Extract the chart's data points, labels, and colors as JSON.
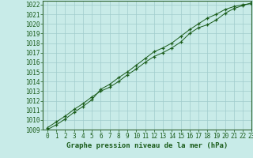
{
  "xlabel": "Graphe pression niveau de la mer (hPa)",
  "xlim": [
    -0.5,
    23
  ],
  "ylim": [
    1009,
    1022.4
  ],
  "yticks": [
    1009,
    1010,
    1011,
    1012,
    1013,
    1014,
    1015,
    1016,
    1017,
    1018,
    1019,
    1020,
    1021,
    1022
  ],
  "xticks": [
    0,
    1,
    2,
    3,
    4,
    5,
    6,
    7,
    8,
    9,
    10,
    11,
    12,
    13,
    14,
    15,
    16,
    17,
    18,
    19,
    20,
    21,
    22,
    23
  ],
  "background_color": "#c8ebe8",
  "grid_color": "#a0cccc",
  "line_color": "#1a5c1a",
  "series1": [
    1009.2,
    1009.8,
    1010.4,
    1011.1,
    1011.7,
    1012.4,
    1013.0,
    1013.4,
    1014.0,
    1014.7,
    1015.3,
    1016.0,
    1016.6,
    1017.0,
    1017.5,
    1018.1,
    1019.0,
    1019.6,
    1019.9,
    1020.4,
    1021.1,
    1021.6,
    1021.9,
    1022.2
  ],
  "series2": [
    1009.0,
    1009.5,
    1010.1,
    1010.8,
    1011.4,
    1012.1,
    1013.2,
    1013.7,
    1014.4,
    1015.0,
    1015.7,
    1016.4,
    1017.1,
    1017.5,
    1018.0,
    1018.7,
    1019.4,
    1020.0,
    1020.6,
    1021.0,
    1021.5,
    1021.8,
    1022.0,
    1022.1
  ],
  "xlabel_fontsize": 6.5,
  "tick_fontsize": 5.5,
  "line_color2": "#1a5c1a",
  "spine_color": "#336633"
}
